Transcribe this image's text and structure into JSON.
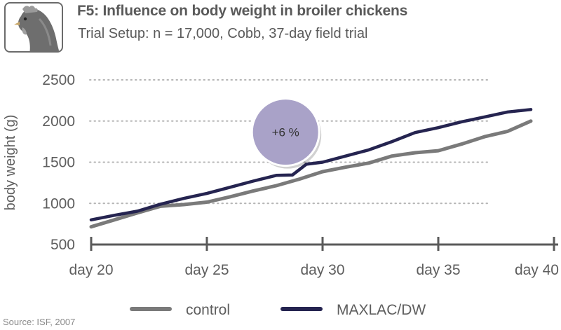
{
  "header": {
    "title": "F5: Influence on body weight in broiler chickens",
    "subtitle": "Trial Setup: n = 17,000, Cobb, 37-day field trial",
    "logo_icon": "chicken-head-icon"
  },
  "footer": {
    "source": "Source: ISF, 2007"
  },
  "colors": {
    "control": "#7a7a7a",
    "maxlac": "#252450",
    "annotation_fill": "#a9a2c8",
    "grid": "#b5b5b5",
    "axis": "#5a5a5a"
  },
  "chart_data": {
    "type": "line",
    "title": "F5: Influence on body weight in broiler chickens",
    "xlabel": "",
    "ylabel": "body weight (g)",
    "xlim": [
      20,
      40
    ],
    "ylim": [
      500,
      2500
    ],
    "x_ticks": [
      20,
      25,
      30,
      35,
      40
    ],
    "x_tick_labels": [
      "day 20",
      "day 25",
      "day 30",
      "day 35",
      "day 40"
    ],
    "y_ticks": [
      500,
      1000,
      1500,
      2000,
      2500
    ],
    "y_tick_labels": [
      "500",
      "1000",
      "1500",
      "2000",
      "2500"
    ],
    "grid": "horizontal-dotted",
    "legend_position": "bottom",
    "series": [
      {
        "name": "control",
        "color": "#7a7a7a",
        "x": [
          20,
          21,
          22,
          23,
          24,
          25,
          26,
          27,
          28,
          29,
          30,
          31,
          32,
          33,
          34,
          35,
          36,
          37,
          38,
          39
        ],
        "y": [
          715,
          800,
          885,
          965,
          985,
          1015,
          1080,
          1150,
          1215,
          1295,
          1385,
          1440,
          1490,
          1575,
          1615,
          1640,
          1720,
          1810,
          1875,
          2000
        ]
      },
      {
        "name": "MAXLAC/DW",
        "color": "#252450",
        "x": [
          20,
          21,
          22,
          23,
          24,
          25,
          26,
          27,
          28,
          28.7,
          29.3,
          30,
          31,
          32,
          33,
          34,
          35,
          36,
          37,
          38,
          39
        ],
        "y": [
          800,
          855,
          905,
          990,
          1060,
          1120,
          1195,
          1270,
          1340,
          1345,
          1475,
          1500,
          1575,
          1650,
          1750,
          1860,
          1920,
          1990,
          2050,
          2110,
          2140
        ]
      }
    ],
    "annotations": [
      {
        "text": "+6 %",
        "x": 28.4,
        "y": 1865
      }
    ]
  }
}
